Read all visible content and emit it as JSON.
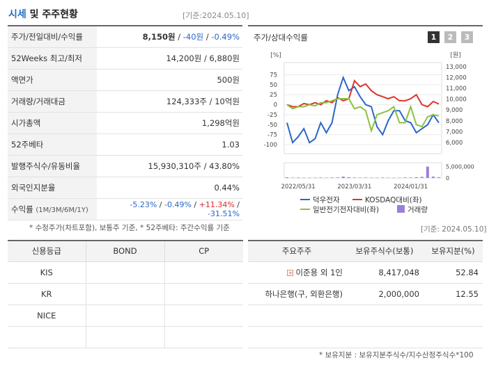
{
  "header": {
    "title_accent": "시세",
    "title_rest": " 및 주주현황",
    "base_date": "[기준:2024.05.10]"
  },
  "price_table": {
    "rows": [
      {
        "label": "주가/전일대비/수익률",
        "price": "8,150원",
        "sep1": " / ",
        "change": "-40원",
        "sep2": " / ",
        "rate": "-0.49%"
      },
      {
        "label": "52Weeks 최고/최저",
        "value": "14,200원 / 6,880원"
      },
      {
        "label": "액면가",
        "value": "500원"
      },
      {
        "label": "거래량/거래대금",
        "value": "124,333주 / 10억원"
      },
      {
        "label": "시가총액",
        "value": "1,298억원"
      },
      {
        "label": "52주베타",
        "value": "1.03"
      },
      {
        "label": "발행주식수/유동비율",
        "value": "15,930,310주 / 43.80%"
      },
      {
        "label": "외국인지분율",
        "value": "0.44%"
      }
    ],
    "return_row": {
      "label": "수익률",
      "label_small": "(1M/3M/6M/1Y)",
      "r1": "-5.23%",
      "r2": "-0.49%",
      "r3": "+11.34%",
      "r4": "-31.51%",
      "sep": " / "
    }
  },
  "chart": {
    "title": "주가/상대수익률",
    "pages": [
      "1",
      "2",
      "3"
    ],
    "left_unit": "[%]",
    "right_unit": "[원]",
    "legend": {
      "s1": "덕우전자",
      "s2": "KOSDAQ대비(좌)",
      "s3": "일반전기전자대비(좌)",
      "s4": "거래량"
    }
  },
  "chart_data": {
    "type": "line",
    "x_ticks": [
      "2022/05/31",
      "2023/03/31",
      "2024/01/31"
    ],
    "left_axis": {
      "unit": "[%]",
      "ticks": [
        75,
        50,
        25,
        0,
        -25,
        -50,
        -75,
        -100
      ],
      "range": [
        -112,
        95
      ]
    },
    "right_axis": {
      "unit": "[원]",
      "ticks": [
        13000,
        12000,
        11000,
        10000,
        9000,
        8000,
        7000,
        6000
      ],
      "range": [
        5350,
        13000
      ]
    },
    "volume_axis": {
      "ticks": [
        "5,000,000",
        "0"
      ],
      "range": [
        0,
        5500000
      ]
    },
    "series": [
      {
        "name": "덕우전자",
        "color": "#2a66c8",
        "axis": "left",
        "values": [
          -45,
          -95,
          -80,
          -60,
          -95,
          -85,
          -45,
          -70,
          -45,
          25,
          68,
          35,
          45,
          20,
          0,
          -5,
          -55,
          -75,
          -40,
          -15,
          -15,
          -40,
          -45,
          -70,
          -60,
          -50,
          -25,
          -45
        ]
      },
      {
        "name": "KOSDAQ대비(좌)",
        "color": "#d9352a",
        "axis": "left",
        "values": [
          0,
          -5,
          -5,
          3,
          0,
          5,
          0,
          10,
          5,
          18,
          10,
          15,
          60,
          45,
          52,
          35,
          25,
          20,
          15,
          20,
          10,
          10,
          15,
          25,
          0,
          -5,
          8,
          2
        ]
      },
      {
        "name": "일반전기전자대비(좌)",
        "color": "#8bc23f",
        "axis": "left",
        "values": [
          0,
          -10,
          -5,
          -5,
          0,
          -3,
          5,
          5,
          10,
          15,
          15,
          15,
          -10,
          -5,
          -15,
          -65,
          -25,
          -20,
          -15,
          -5,
          -45,
          -45,
          -5,
          -50,
          -55,
          -30,
          -25,
          -28
        ]
      },
      {
        "name": "거래량",
        "color": "#9b7fd4",
        "axis": "volume",
        "type": "bar",
        "values": [
          300000,
          150000,
          200000,
          100000,
          100000,
          150000,
          200000,
          150000,
          200000,
          250000,
          600000,
          350000,
          200000,
          150000,
          200000,
          150000,
          100000,
          200000,
          150000,
          100000,
          150000,
          250000,
          200000,
          350000,
          500000,
          5000000,
          600000,
          300000
        ]
      }
    ]
  },
  "notes": {
    "chart_note": "* 수정주가(차트포함), 보통주 기준, * 52주베타: 주간수익률 기준",
    "base_date2": "[기준: 2024.05.10]"
  },
  "credit_table": {
    "headers": [
      "신용등급",
      "BOND",
      "CP"
    ],
    "rows": [
      [
        "KIS",
        "",
        ""
      ],
      [
        "KR",
        "",
        ""
      ],
      [
        "NICE",
        "",
        ""
      ],
      [
        "",
        "",
        ""
      ]
    ]
  },
  "holder_table": {
    "headers": [
      "주요주주",
      "보유주식수(보통)",
      "보유지분(%)"
    ],
    "rows": [
      {
        "name": "이준용 외 1인",
        "shares": "8,417,048",
        "pct": "52.84",
        "expandable": true
      },
      {
        "name": "하나은행(구, 외환은행)",
        "shares": "2,000,000",
        "pct": "12.55"
      }
    ],
    "note": "* 보유지분 : 보유지분주식수/지수산정주식수*100"
  }
}
